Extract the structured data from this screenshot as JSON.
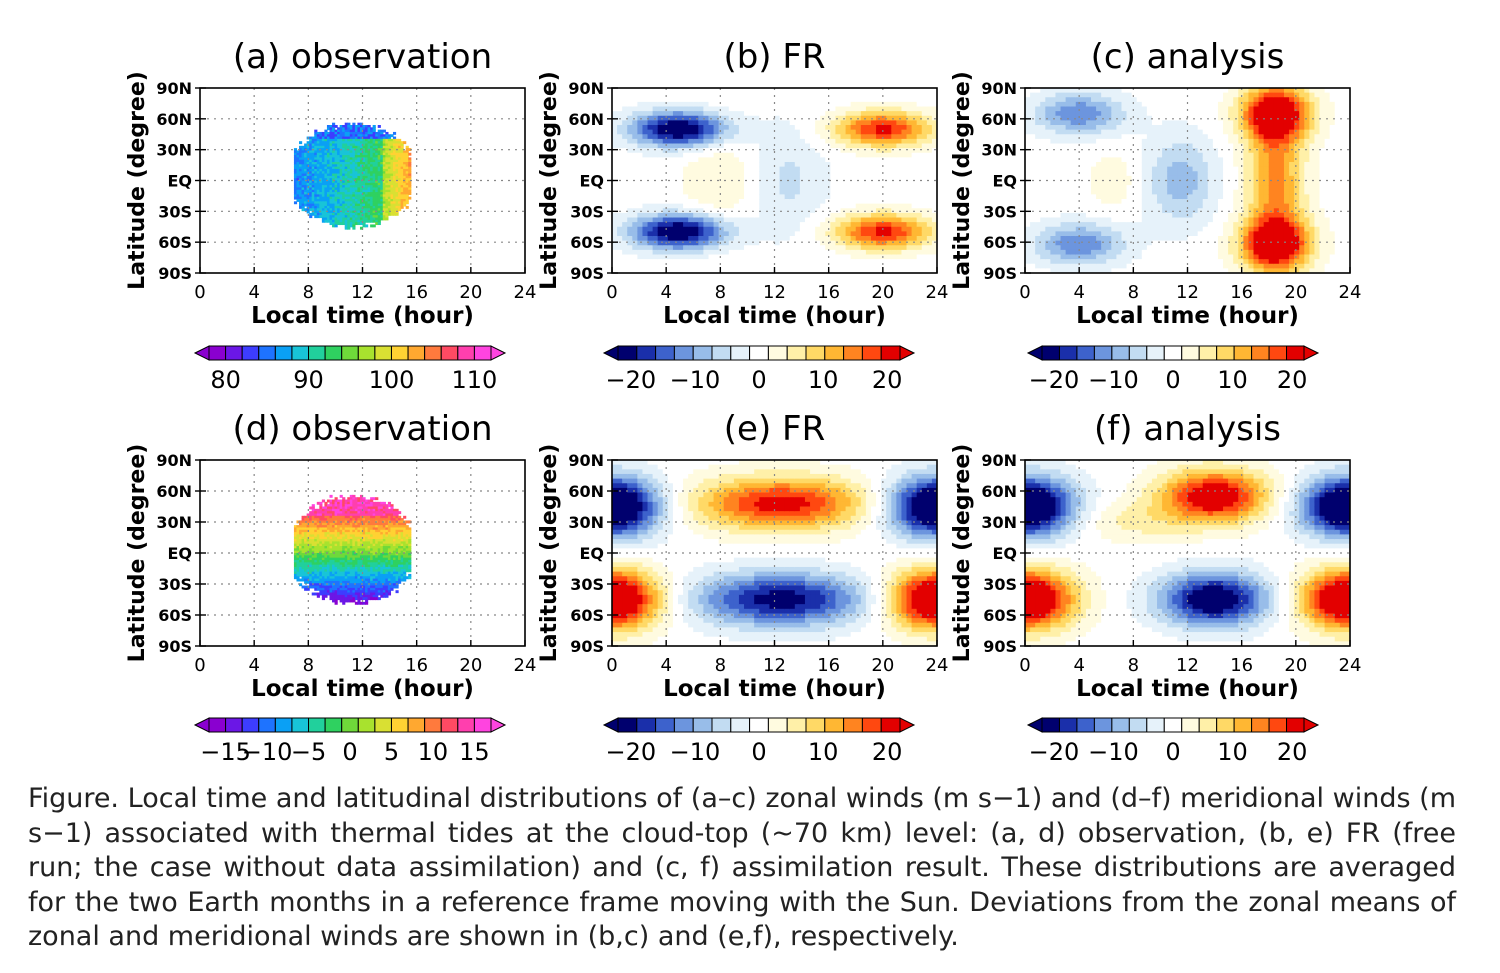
{
  "chart_data": [
    {
      "id": "a",
      "type": "heatmap",
      "title": "(a)  observation",
      "xlabel": "Local  time  (hour)",
      "ylabel": "Latitude  (degree)",
      "x_ticks": [
        "0",
        "4",
        "8",
        "12",
        "16",
        "20",
        "24"
      ],
      "y_ticks": [
        "90N",
        "60N",
        "30N",
        "EQ",
        "30S",
        "60S",
        "90S"
      ],
      "xlim": [
        0,
        24
      ],
      "ylim": [
        -90,
        90
      ],
      "field": "observed zonal wind",
      "colorbar": {
        "scheme": "rainbow",
        "range": [
          78,
          112
        ],
        "ticks": [
          "80",
          "90",
          "100",
          "110"
        ]
      },
      "blobs": [
        {
          "x": [
            7,
            15.5
          ],
          "y": [
            -45,
            55
          ],
          "value": "observation-coverage"
        }
      ]
    },
    {
      "id": "b",
      "type": "heatmap",
      "title": "(b)  FR",
      "xlabel": "Local  time  (hour)",
      "ylabel": "Latitude  (degree)",
      "x_ticks": [
        "0",
        "4",
        "8",
        "12",
        "16",
        "20",
        "24"
      ],
      "y_ticks": [
        "90N",
        "60N",
        "30N",
        "EQ",
        "30S",
        "60S",
        "90S"
      ],
      "xlim": [
        0,
        24
      ],
      "ylim": [
        -90,
        90
      ],
      "colorbar": {
        "scheme": "diverging",
        "range": [
          -22,
          22
        ],
        "ticks": [
          "−20",
          "−10",
          "0",
          "10",
          "20"
        ]
      },
      "blobs": [
        {
          "x": 5,
          "y": 50,
          "sx": 2.5,
          "sy": 12,
          "value": -24
        },
        {
          "x": 5,
          "y": -50,
          "sx": 2.5,
          "sy": 12,
          "value": -24
        },
        {
          "x": 20,
          "y": 50,
          "sx": 2.5,
          "sy": 12,
          "value": 20
        },
        {
          "x": 20,
          "y": -50,
          "sx": 2.5,
          "sy": 12,
          "value": 20
        },
        {
          "x": 13,
          "y": 0,
          "sx": 2,
          "sy": 40,
          "value": -5
        },
        {
          "x": 8,
          "y": 0,
          "sx": 2,
          "sy": 40,
          "value": 4
        }
      ]
    },
    {
      "id": "c",
      "type": "heatmap",
      "title": "(c)  analysis",
      "xlabel": "Local  time  (hour)",
      "ylabel": "Latitude  (degree)",
      "x_ticks": [
        "0",
        "4",
        "8",
        "12",
        "16",
        "20",
        "24"
      ],
      "y_ticks": [
        "90N",
        "60N",
        "30N",
        "EQ",
        "30S",
        "60S",
        "90S"
      ],
      "xlim": [
        0,
        24
      ],
      "ylim": [
        -90,
        90
      ],
      "colorbar": {
        "scheme": "diverging",
        "range": [
          -22,
          22
        ],
        "ticks": [
          "−20",
          "−10",
          "0",
          "10",
          "20"
        ]
      },
      "blobs": [
        {
          "x": 4,
          "y": 65,
          "sx": 2.3,
          "sy": 14,
          "value": -13
        },
        {
          "x": 4,
          "y": -62,
          "sx": 2.3,
          "sy": 14,
          "value": -13
        },
        {
          "x": 11.5,
          "y": 0,
          "sx": 1.8,
          "sy": 30,
          "value": -9
        },
        {
          "x": 6.5,
          "y": 0,
          "sx": 1.2,
          "sy": 18,
          "value": 4
        },
        {
          "x": 18.5,
          "y": 65,
          "sx": 1.8,
          "sy": 18,
          "value": 24
        },
        {
          "x": 18.5,
          "y": -62,
          "sx": 1.8,
          "sy": 18,
          "value": 24
        },
        {
          "x": 18.5,
          "y": 0,
          "sx": 1.5,
          "sy": 50,
          "value": 14
        }
      ]
    },
    {
      "id": "d",
      "type": "heatmap",
      "title": "(d)  observation",
      "xlabel": "Local  time  (hour)",
      "ylabel": "Latitude  (degree)",
      "x_ticks": [
        "0",
        "4",
        "8",
        "12",
        "16",
        "20",
        "24"
      ],
      "y_ticks": [
        "90N",
        "60N",
        "30N",
        "EQ",
        "30S",
        "60S",
        "90S"
      ],
      "xlim": [
        0,
        24
      ],
      "ylim": [
        -90,
        90
      ],
      "field": "observed meridional wind",
      "colorbar": {
        "scheme": "rainbow",
        "range": [
          -17,
          17
        ],
        "ticks": [
          "−15",
          "−10",
          "−5",
          "0",
          "5",
          "10",
          "15"
        ]
      },
      "blobs": [
        {
          "x": [
            7,
            15.5
          ],
          "y": [
            -48,
            55
          ],
          "value": "observation-coverage"
        }
      ]
    },
    {
      "id": "e",
      "type": "heatmap",
      "title": "(e)  FR",
      "xlabel": "Local  time  (hour)",
      "ylabel": "Latitude  (degree)",
      "x_ticks": [
        "0",
        "4",
        "8",
        "12",
        "16",
        "20",
        "24"
      ],
      "y_ticks": [
        "90N",
        "60N",
        "30N",
        "EQ",
        "30S",
        "60S",
        "90S"
      ],
      "xlim": [
        0,
        24
      ],
      "ylim": [
        -90,
        90
      ],
      "colorbar": {
        "scheme": "diverging",
        "range": [
          -22,
          22
        ],
        "ticks": [
          "−20",
          "−10",
          "0",
          "10",
          "20"
        ]
      },
      "blobs": [
        {
          "x": 0,
          "y": 45,
          "sx": 2.5,
          "sy": 20,
          "value": -30
        },
        {
          "x": 24,
          "y": 45,
          "sx": 2.5,
          "sy": 20,
          "value": -30
        },
        {
          "x": 0,
          "y": -45,
          "sx": 2.5,
          "sy": 20,
          "value": 30
        },
        {
          "x": 24,
          "y": -45,
          "sx": 2.5,
          "sy": 20,
          "value": 30
        },
        {
          "x": 12.5,
          "y": 48,
          "sx": 4.5,
          "sy": 18,
          "value": 21
        },
        {
          "x": 12.5,
          "y": -45,
          "sx": 4.5,
          "sy": 18,
          "value": -21
        }
      ]
    },
    {
      "id": "f",
      "type": "heatmap",
      "title": "(f)  analysis",
      "xlabel": "Local  time  (hour)",
      "ylabel": "Latitude  (degree)",
      "x_ticks": [
        "0",
        "4",
        "8",
        "12",
        "16",
        "20",
        "24"
      ],
      "y_ticks": [
        "90N",
        "60N",
        "30N",
        "EQ",
        "30S",
        "60S",
        "90S"
      ],
      "xlim": [
        0,
        24
      ],
      "ylim": [
        -90,
        90
      ],
      "colorbar": {
        "scheme": "diverging",
        "range": [
          -22,
          22
        ],
        "ticks": [
          "−20",
          "−10",
          "0",
          "10",
          "20"
        ]
      },
      "blobs": [
        {
          "x": 0,
          "y": 45,
          "sx": 2.5,
          "sy": 20,
          "value": -30
        },
        {
          "x": 24,
          "y": 45,
          "sx": 2.5,
          "sy": 20,
          "value": -30
        },
        {
          "x": 0,
          "y": -45,
          "sx": 2.5,
          "sy": 20,
          "value": 30
        },
        {
          "x": 24,
          "y": -45,
          "sx": 2.5,
          "sy": 20,
          "value": 30
        },
        {
          "x": 14,
          "y": 55,
          "sx": 2.8,
          "sy": 18,
          "value": 24
        },
        {
          "x": 14,
          "y": -45,
          "sx": 2.8,
          "sy": 18,
          "value": -24
        },
        {
          "x": 8,
          "y": 30,
          "sx": 3,
          "sy": 14,
          "value": 5
        }
      ]
    }
  ],
  "caption": "Figure. Local time and latitudinal distributions of (a–c) zonal winds (m s−1) and (d–f) meridional winds (m s−1) associated with thermal tides at the cloud-top (~70 km) level: (a, d) observation, (b, e) FR (free run; the case without data assimilation) and (c, f) assimilation result. These distributions are averaged for the two Earth months in a reference frame moving with the Sun. Deviations from the zonal means of zonal and meridional winds are shown in (b,c) and (e,f), respectively."
}
